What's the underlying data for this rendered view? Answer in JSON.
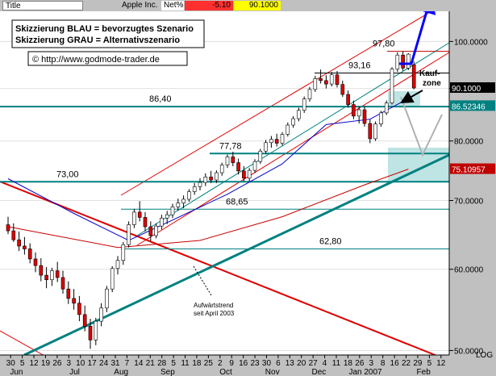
{
  "titlebar": {
    "title": "Title",
    "symbol": "Apple Inc.",
    "change_label": "Net%",
    "change_value": "-5.10",
    "last_price": "90.1000",
    "colors": {
      "change_bg": "#ff3030",
      "price_bg": "#ffff00"
    }
  },
  "chart_data": {
    "type": "candlestick",
    "title": "",
    "legend_text": [
      "Skizzierung BLAU = bevorzugtes Szenario",
      "Skizzierung GRAU = Alternativszenario",
      "© http://www.godmode-trader.de"
    ],
    "y_axis": {
      "position": "right",
      "scale": "log",
      "range": [
        49.5,
        107
      ],
      "ticks": [
        "100.0000",
        "90.0000",
        "80.0000",
        "70.0000",
        "60.0000",
        "50.0000"
      ],
      "tick_values": [
        100,
        90,
        80,
        70,
        60,
        50
      ],
      "scale_label": "LOG"
    },
    "x_axis": {
      "day_labels": [
        "30",
        "5",
        "12",
        "19",
        "26",
        "3",
        "10",
        "17",
        "24",
        "31",
        "7",
        "14",
        "21",
        "28",
        "5",
        "11",
        "18",
        "25",
        "2",
        "9",
        "16",
        "23",
        "30",
        "6",
        "13",
        "20",
        "27",
        "4",
        "11",
        "18",
        "26",
        "3",
        "8",
        "16",
        "22",
        "29",
        "5",
        "12"
      ],
      "month_labels": [
        "Jun",
        "Jul",
        "Aug",
        "Sep",
        "Oct",
        "Nov",
        "Dec",
        "Jan 2007",
        "Feb"
      ]
    },
    "price_markers": [
      {
        "label": "90.1000",
        "value": 90.1,
        "color": "#000000"
      },
      {
        "label": "86.52346",
        "value": 86.52346,
        "color": "#008080"
      },
      {
        "label": "75.10957",
        "value": 75.10957,
        "color": "#c00000"
      }
    ],
    "horizontal_levels": [
      {
        "label": "97,80",
        "value": 97.8,
        "style": "resistance"
      },
      {
        "label": "93,16",
        "value": 93.16,
        "style": "thin"
      },
      {
        "label": "86,40",
        "value": 86.4,
        "style": "thick"
      },
      {
        "label": "77,78",
        "value": 77.78,
        "style": "thick"
      },
      {
        "label": "73,00",
        "value": 73.0,
        "style": "thick"
      },
      {
        "label": "68,65",
        "value": 68.65,
        "style": "thin"
      },
      {
        "label": "62,80",
        "value": 62.8,
        "style": "thin"
      }
    ],
    "annotations": {
      "buy_zone_label": [
        "Kauf-",
        "zone"
      ],
      "trend_label": [
        "Aufwärtstrend",
        "seit April 2003"
      ]
    },
    "candles": [
      [
        66.3,
        67.5,
        64.9,
        65.4
      ],
      [
        65.4,
        66.5,
        63.8,
        64.1
      ],
      [
        64.1,
        65.3,
        62.5,
        63.2
      ],
      [
        63.2,
        64.5,
        62.0,
        62.8
      ],
      [
        62.8,
        63.6,
        60.8,
        61.4
      ],
      [
        61.4,
        62.3,
        59.6,
        60.5
      ],
      [
        60.5,
        61.5,
        58.4,
        59.2
      ],
      [
        59.2,
        60.3,
        57.5,
        58.6
      ],
      [
        58.6,
        60.2,
        57.8,
        59.8
      ],
      [
        59.8,
        61.0,
        58.3,
        58.9
      ],
      [
        58.9,
        59.8,
        56.8,
        57.4
      ],
      [
        57.4,
        58.4,
        55.5,
        56.2
      ],
      [
        56.2,
        57.4,
        54.8,
        55.6
      ],
      [
        55.6,
        56.5,
        53.4,
        54.2
      ],
      [
        54.2,
        55.3,
        52.2,
        52.8
      ],
      [
        52.8,
        53.7,
        50.2,
        51.2
      ],
      [
        51.2,
        53.8,
        50.6,
        53.4
      ],
      [
        53.4,
        55.6,
        52.8,
        55.0
      ],
      [
        55.0,
        57.8,
        54.5,
        57.4
      ],
      [
        57.4,
        60.4,
        57.0,
        60.1
      ],
      [
        60.1,
        61.8,
        59.3,
        61.2
      ],
      [
        61.2,
        63.8,
        60.6,
        63.4
      ],
      [
        63.4,
        66.8,
        63.0,
        66.3
      ],
      [
        66.3,
        68.7,
        65.8,
        68.2
      ],
      [
        68.2,
        69.9,
        66.8,
        67.4
      ],
      [
        67.4,
        68.2,
        65.3,
        66.0
      ],
      [
        66.0,
        66.8,
        63.9,
        64.7
      ],
      [
        64.7,
        66.5,
        64.3,
        66.1
      ],
      [
        66.1,
        67.8,
        65.6,
        67.3
      ],
      [
        67.3,
        68.4,
        66.4,
        67.8
      ],
      [
        67.8,
        69.5,
        67.3,
        69.0
      ],
      [
        69.0,
        70.3,
        68.4,
        69.6
      ],
      [
        69.6,
        70.8,
        68.8,
        70.2
      ],
      [
        70.2,
        71.8,
        69.8,
        71.4
      ],
      [
        71.4,
        72.8,
        70.9,
        72.2
      ],
      [
        72.2,
        73.6,
        71.6,
        72.9
      ],
      [
        72.9,
        74.4,
        72.3,
        73.8
      ],
      [
        73.8,
        74.8,
        72.8,
        73.3
      ],
      [
        73.3,
        74.9,
        72.8,
        74.5
      ],
      [
        74.5,
        76.2,
        74.0,
        75.8
      ],
      [
        75.8,
        77.6,
        75.3,
        77.2
      ],
      [
        77.2,
        78.1,
        75.6,
        76.2
      ],
      [
        76.2,
        76.9,
        74.2,
        74.8
      ],
      [
        74.8,
        75.6,
        73.1,
        73.6
      ],
      [
        73.6,
        75.3,
        73.1,
        74.9
      ],
      [
        74.9,
        76.8,
        74.5,
        76.4
      ],
      [
        76.4,
        78.6,
        76.0,
        78.2
      ],
      [
        78.2,
        80.2,
        77.7,
        79.7
      ],
      [
        79.7,
        80.9,
        78.8,
        80.3
      ],
      [
        80.3,
        81.3,
        79.0,
        79.6
      ],
      [
        79.6,
        81.6,
        79.2,
        81.2
      ],
      [
        81.2,
        83.4,
        80.8,
        82.9
      ],
      [
        82.9,
        84.6,
        82.4,
        84.1
      ],
      [
        84.1,
        86.2,
        83.6,
        85.7
      ],
      [
        85.7,
        88.4,
        85.2,
        87.9
      ],
      [
        87.9,
        90.3,
        87.4,
        89.8
      ],
      [
        89.8,
        92.6,
        89.3,
        92.0
      ],
      [
        92.0,
        93.9,
        91.0,
        91.6
      ],
      [
        91.6,
        92.7,
        90.0,
        90.9
      ],
      [
        90.9,
        93.4,
        90.4,
        92.8
      ],
      [
        92.8,
        93.6,
        90.2,
        90.8
      ],
      [
        90.8,
        91.6,
        88.3,
        88.8
      ],
      [
        88.8,
        89.6,
        86.2,
        86.8
      ],
      [
        86.8,
        87.6,
        84.0,
        84.6
      ],
      [
        84.6,
        86.4,
        83.2,
        85.8
      ],
      [
        85.8,
        86.5,
        82.6,
        83.2
      ],
      [
        83.2,
        84.0,
        79.6,
        80.4
      ],
      [
        80.4,
        83.6,
        80.0,
        83.1
      ],
      [
        83.1,
        85.6,
        82.6,
        85.2
      ],
      [
        85.2,
        87.6,
        84.8,
        87.1
      ],
      [
        87.1,
        94.4,
        86.8,
        94.0
      ],
      [
        94.0,
        97.6,
        93.4,
        97.0
      ],
      [
        97.0,
        97.8,
        93.6,
        94.2
      ],
      [
        94.2,
        97.4,
        93.8,
        97.2
      ],
      [
        94.9,
        95.6,
        89.8,
        90.1
      ]
    ],
    "moving_averages": [
      {
        "color": "#0000c8",
        "values": [
          [
            0,
            73.5
          ],
          [
            12,
            68.0
          ],
          [
            22,
            64.0
          ],
          [
            30,
            67.0
          ],
          [
            40,
            71.0
          ],
          [
            50,
            76.0
          ],
          [
            58,
            83.0
          ],
          [
            66,
            84.0
          ],
          [
            73,
            88.0
          ]
        ]
      },
      {
        "color": "#c80000",
        "values": [
          [
            0,
            66.0
          ],
          [
            20,
            63.0
          ],
          [
            35,
            64.0
          ],
          [
            50,
            67.5
          ],
          [
            65,
            72.5
          ],
          [
            73,
            75.1
          ]
        ]
      }
    ]
  }
}
